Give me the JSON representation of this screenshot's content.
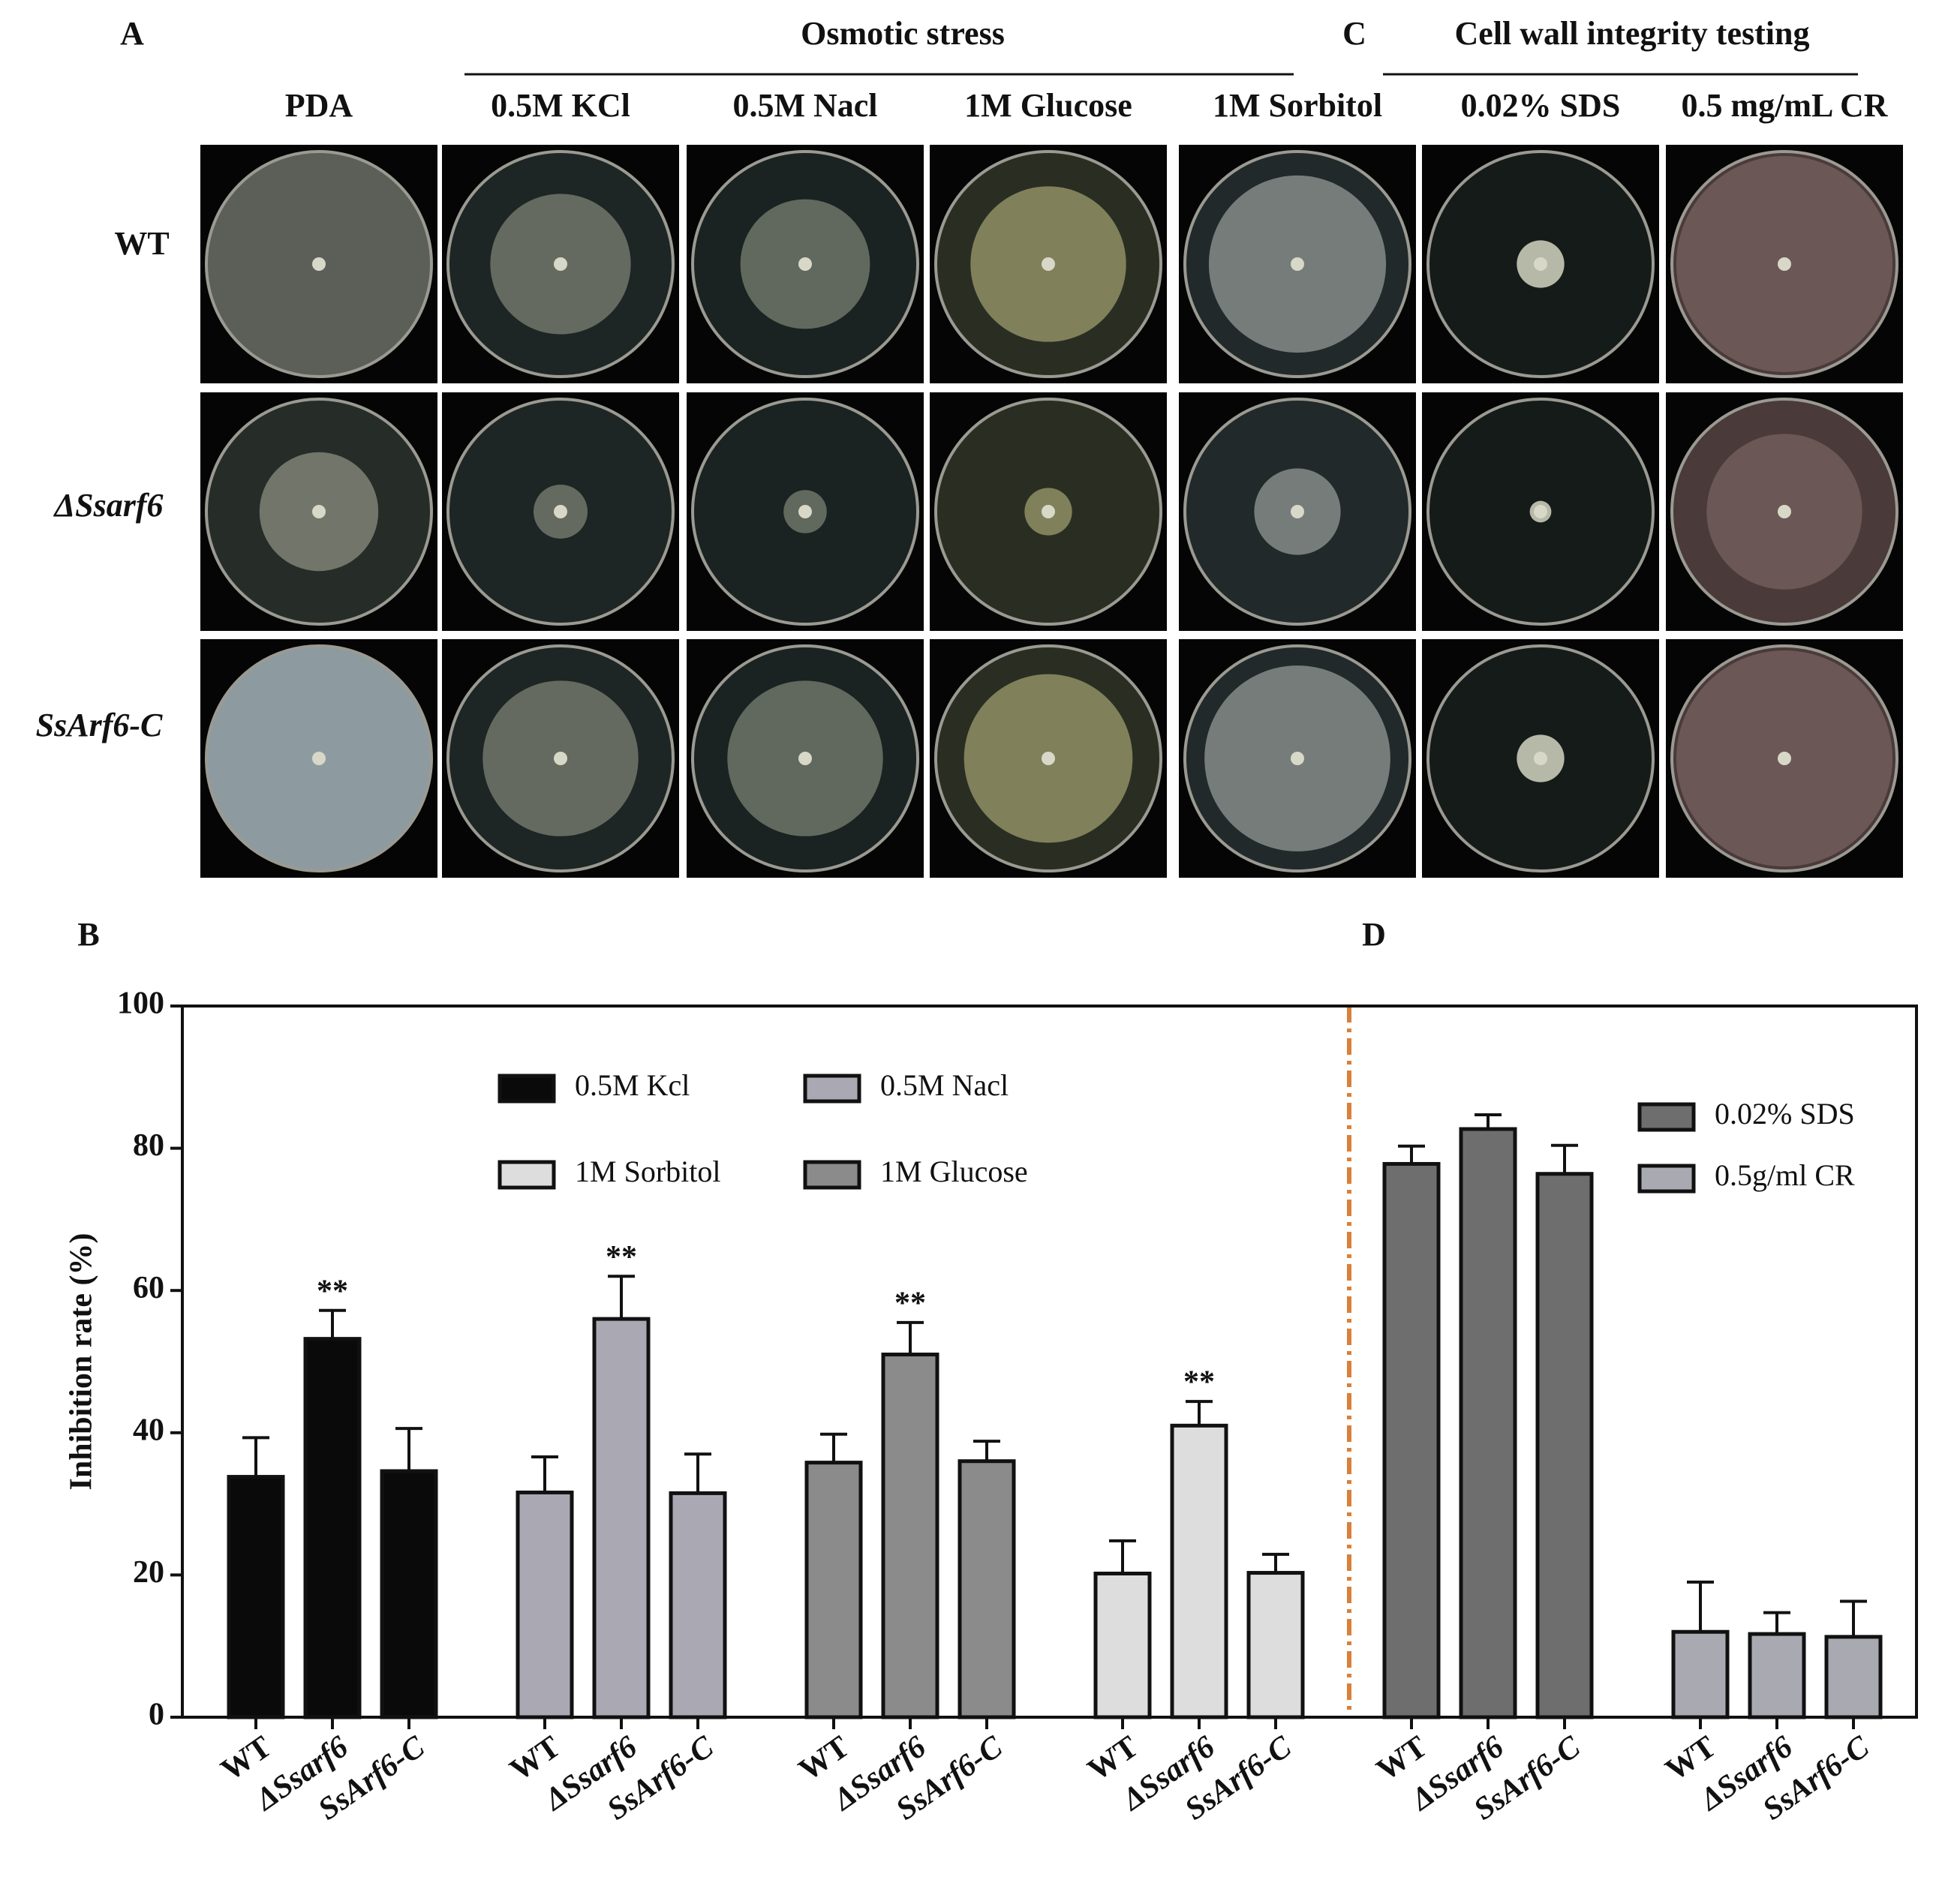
{
  "figure": {
    "panel_labels": [
      "A",
      "B",
      "C",
      "D"
    ],
    "osmotic_header": "Osmotic stress",
    "cell_wall_header": "Cell wall integrity testing",
    "columns": [
      "PDA",
      "0.5M KCl",
      "0.5M Nacl",
      "1M Glucose",
      "1M Sorbitol",
      "0.02% SDS",
      "0.5 mg/mL CR"
    ],
    "rows": [
      "WT",
      "ΔSsarf6",
      "SsArf6-C"
    ]
  },
  "chart_data": {
    "type": "bar",
    "y_label": "Inhibition rate (%)",
    "categories": [
      "WT",
      "ΔSsarf6",
      "SsArf6-C"
    ],
    "ylim": [
      0,
      100
    ],
    "yticks": [
      0,
      20,
      40,
      60,
      80,
      100
    ],
    "series": [
      {
        "name": "0.5M Kcl",
        "color": "#0a0a0a",
        "values": [
          33.8,
          53.2,
          34.6
        ],
        "errors": [
          5.5,
          4,
          6
        ],
        "significance": [
          null,
          "**",
          null
        ]
      },
      {
        "name": "0.5M Nacl",
        "color": "#aaa9b3",
        "values": [
          31.6,
          56,
          31.5
        ],
        "errors": [
          5,
          6,
          5.5
        ],
        "significance": [
          null,
          "**",
          null
        ]
      },
      {
        "name": "1M Glucose",
        "color": "#8b8b8b",
        "values": [
          35.8,
          51,
          36
        ],
        "errors": [
          4,
          4.5,
          2.8
        ],
        "significance": [
          null,
          "**",
          null
        ]
      },
      {
        "name": "1M Sorbitol",
        "color": "#dddddd",
        "values": [
          20.2,
          41,
          20.3
        ],
        "errors": [
          4.6,
          3.4,
          2.6
        ],
        "significance": [
          null,
          "**",
          null
        ]
      },
      {
        "name": "0.02% SDS",
        "color": "#6e6e6e",
        "values": [
          77.8,
          82.7,
          76.4
        ],
        "errors": [
          2.5,
          2,
          4
        ]
      },
      {
        "name": "0.5g/ml CR",
        "color": "#a9a9b2",
        "values": [
          12,
          11.7,
          11.3
        ],
        "errors": [
          7,
          3,
          5
        ]
      }
    ]
  }
}
